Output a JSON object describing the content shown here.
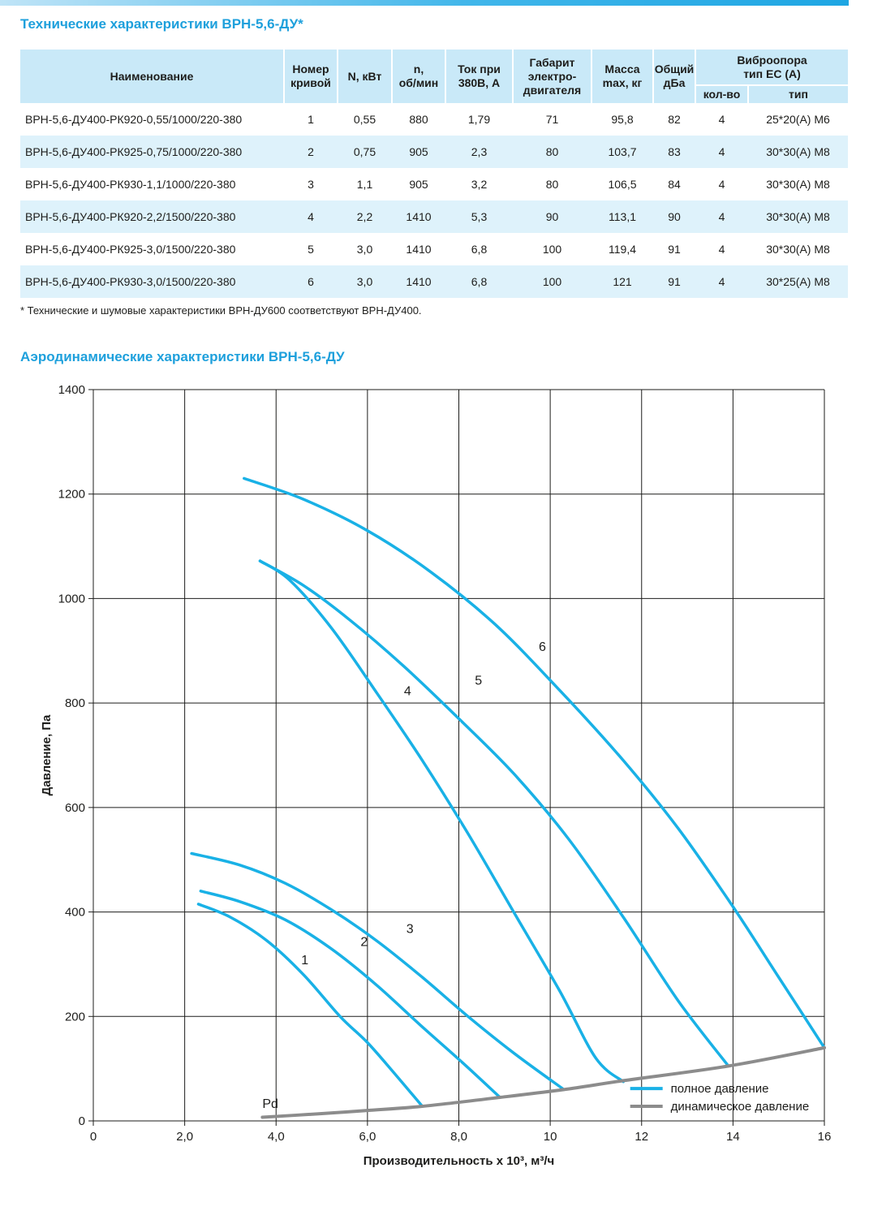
{
  "title": "Технические характеристики ВРН-5,6-ДУ*",
  "table": {
    "headers": {
      "name": "Наименование",
      "curve": [
        "Номер",
        "кривой"
      ],
      "power": "N, кВт",
      "rpm": [
        "n,",
        "об/мин"
      ],
      "current": [
        "Ток при",
        "380В, А"
      ],
      "frame": [
        "Габарит",
        "электро-",
        "двигателя"
      ],
      "mass": [
        "Масса",
        "max, кг"
      ],
      "noise": [
        "Общий",
        "дБа"
      ],
      "vib": [
        "Виброопора",
        "тип ЕС (А)"
      ],
      "vib_qty": "кол-во",
      "vib_type": "тип"
    },
    "rows": [
      [
        "ВРН-5,6-ДУ400-РК920-0,55/1000/220-380",
        "1",
        "0,55",
        "880",
        "1,79",
        "71",
        "95,8",
        "82",
        "4",
        "25*20(А) М6"
      ],
      [
        "ВРН-5,6-ДУ400-РК925-0,75/1000/220-380",
        "2",
        "0,75",
        "905",
        "2,3",
        "80",
        "103,7",
        "83",
        "4",
        "30*30(А) М8"
      ],
      [
        "ВРН-5,6-ДУ400-РК930-1,1/1000/220-380",
        "3",
        "1,1",
        "905",
        "3,2",
        "80",
        "106,5",
        "84",
        "4",
        "30*30(А) М8"
      ],
      [
        "ВРН-5,6-ДУ400-РК920-2,2/1500/220-380",
        "4",
        "2,2",
        "1410",
        "5,3",
        "90",
        "113,1",
        "90",
        "4",
        "30*30(А) М8"
      ],
      [
        "ВРН-5,6-ДУ400-РК925-3,0/1500/220-380",
        "5",
        "3,0",
        "1410",
        "6,8",
        "100",
        "119,4",
        "91",
        "4",
        "30*30(А) М8"
      ],
      [
        "ВРН-5,6-ДУ400-РК930-3,0/1500/220-380",
        "6",
        "3,0",
        "1410",
        "6,8",
        "100",
        "121",
        "91",
        "4",
        "30*25(А) М8"
      ]
    ]
  },
  "note": "* Технические и шумовые характеристики ВРН-ДУ600 соответствуют ВРН-ДУ400.",
  "chart_title": "Аэродинамические характеристики ВРН-5,6-ДУ",
  "colors": {
    "accent": "#1ea0dc",
    "curve": "#19b1e6",
    "dynamic": "#8c8c8c",
    "header_bg": "#c9e9f8",
    "row_alt": "#def2fb"
  },
  "chart_data": {
    "type": "line",
    "xlabel": "Производительность х 10³, м³/ч",
    "ylabel": "Давление, Па",
    "xlim": [
      0,
      16
    ],
    "ylim": [
      0,
      1400
    ],
    "xticks": [
      0,
      2,
      4,
      6,
      8,
      10,
      12,
      14,
      16
    ],
    "xtick_labels": [
      "0",
      "2,0",
      "4,0",
      "6,0",
      "8,0",
      "10",
      "12",
      "14",
      "16"
    ],
    "yticks": [
      0,
      200,
      400,
      600,
      800,
      1000,
      1200,
      1400
    ],
    "ytick_labels": [
      "0",
      "200",
      "400",
      "600",
      "800",
      "1000",
      "1200",
      "1400"
    ],
    "grid": true,
    "legend_position": "bottom-right",
    "legend": [
      "полное давление",
      "динамическое давление"
    ],
    "series": [
      {
        "name": "1",
        "kind": "full",
        "label_at": [
          4.55,
          300
        ],
        "points": [
          [
            2.3,
            415
          ],
          [
            3.0,
            390
          ],
          [
            3.8,
            345
          ],
          [
            4.6,
            280
          ],
          [
            5.4,
            200
          ],
          [
            6.0,
            150
          ],
          [
            6.6,
            90
          ],
          [
            7.2,
            28
          ]
        ]
      },
      {
        "name": "2",
        "kind": "full",
        "label_at": [
          5.85,
          335
        ],
        "points": [
          [
            2.35,
            440
          ],
          [
            3.2,
            420
          ],
          [
            4.2,
            385
          ],
          [
            5.2,
            330
          ],
          [
            6.2,
            260
          ],
          [
            7.2,
            180
          ],
          [
            8.1,
            110
          ],
          [
            8.9,
            45
          ]
        ]
      },
      {
        "name": "3",
        "kind": "full",
        "label_at": [
          6.85,
          360
        ],
        "points": [
          [
            2.15,
            512
          ],
          [
            3.2,
            490
          ],
          [
            4.2,
            455
          ],
          [
            5.2,
            405
          ],
          [
            6.2,
            345
          ],
          [
            7.2,
            275
          ],
          [
            8.2,
            200
          ],
          [
            9.2,
            130
          ],
          [
            10.3,
            60
          ]
        ]
      },
      {
        "name": "4",
        "kind": "full",
        "label_at": [
          6.8,
          815
        ],
        "points": [
          [
            3.65,
            1072
          ],
          [
            4.3,
            1035
          ],
          [
            5.2,
            945
          ],
          [
            6.2,
            820
          ],
          [
            7.2,
            690
          ],
          [
            8.2,
            550
          ],
          [
            9.2,
            400
          ],
          [
            10.2,
            250
          ],
          [
            11.0,
            120
          ],
          [
            11.6,
            75
          ]
        ]
      },
      {
        "name": "5",
        "kind": "full",
        "label_at": [
          8.35,
          835
        ],
        "points": [
          [
            3.65,
            1072
          ],
          [
            4.6,
            1025
          ],
          [
            5.6,
            960
          ],
          [
            6.8,
            870
          ],
          [
            8.0,
            770
          ],
          [
            9.2,
            665
          ],
          [
            10.4,
            540
          ],
          [
            11.6,
            390
          ],
          [
            12.8,
            230
          ],
          [
            13.9,
            105
          ]
        ]
      },
      {
        "name": "6",
        "kind": "full",
        "label_at": [
          9.75,
          900
        ],
        "points": [
          [
            3.3,
            1230
          ],
          [
            4.6,
            1190
          ],
          [
            6.0,
            1130
          ],
          [
            7.4,
            1050
          ],
          [
            8.8,
            950
          ],
          [
            10.2,
            825
          ],
          [
            11.6,
            690
          ],
          [
            12.8,
            560
          ],
          [
            14.0,
            410
          ],
          [
            15.0,
            275
          ],
          [
            16.0,
            140
          ]
        ]
      },
      {
        "name": "Pd",
        "kind": "dynamic",
        "label_at": [
          3.7,
          25
        ],
        "points": [
          [
            3.7,
            7
          ],
          [
            5.0,
            14
          ],
          [
            6.0,
            20
          ],
          [
            7.2,
            28
          ],
          [
            8.9,
            45
          ],
          [
            10.3,
            60
          ],
          [
            11.6,
            77
          ],
          [
            13.9,
            105
          ],
          [
            16.0,
            140
          ]
        ]
      }
    ]
  }
}
